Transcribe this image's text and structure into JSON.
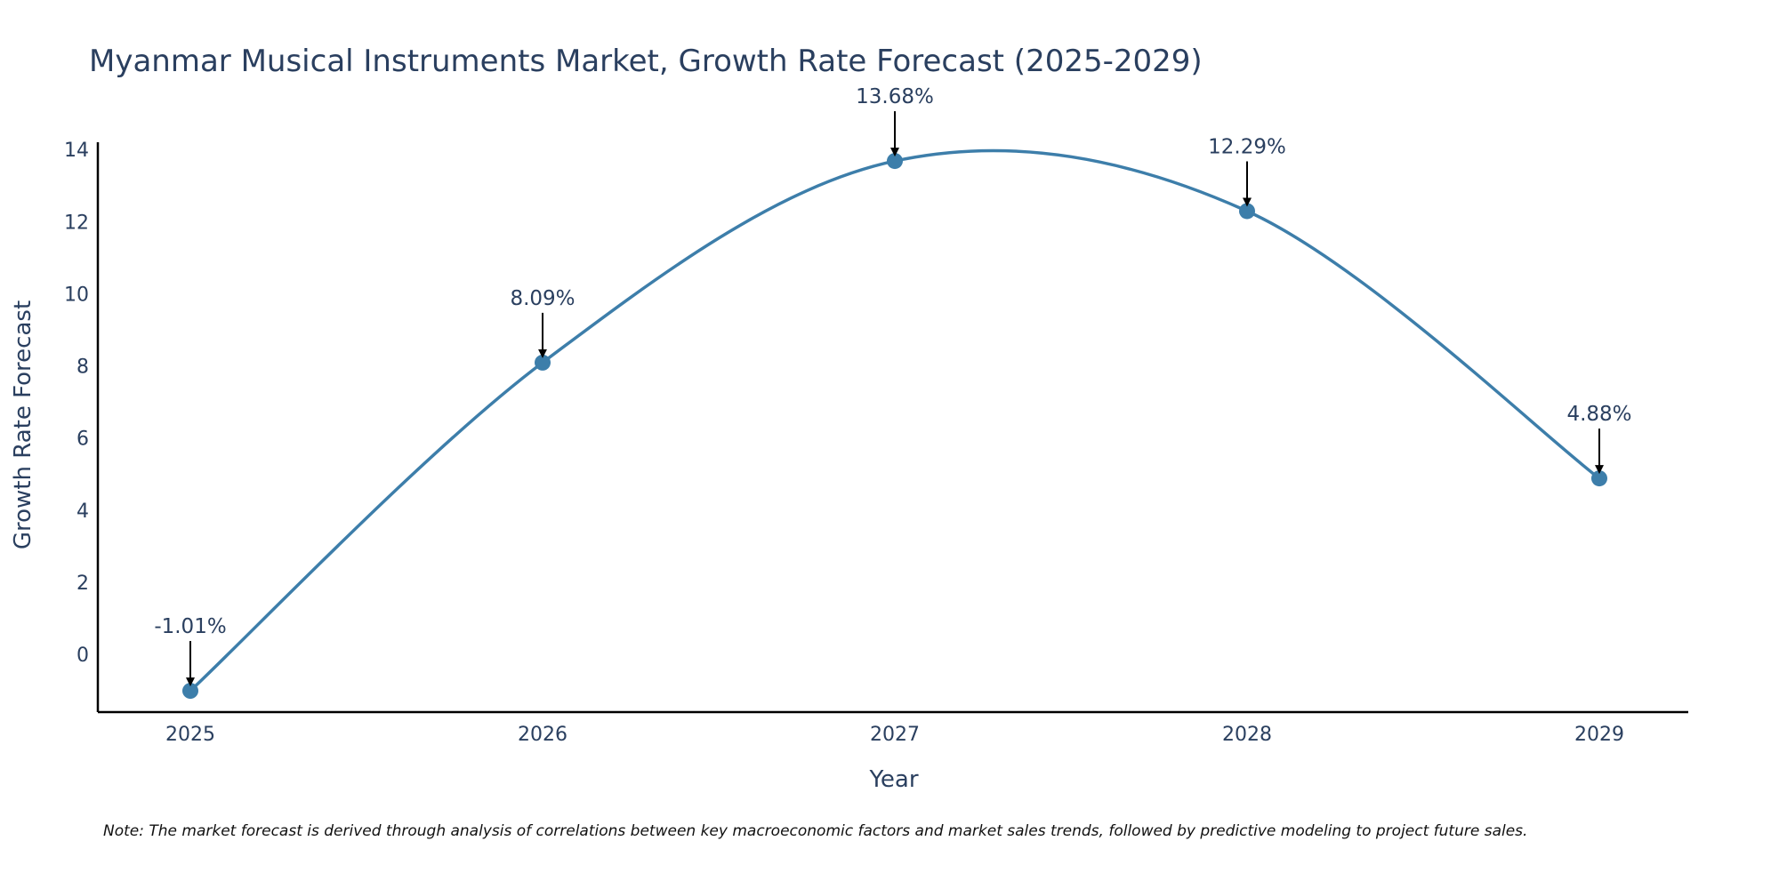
{
  "chart_data": {
    "type": "line",
    "title": "Myanmar Musical Instruments Market, Growth Rate Forecast (2025-2029)",
    "xlabel": "Year",
    "ylabel": "Growth Rate Forecast",
    "categories": [
      "2025",
      "2026",
      "2027",
      "2028",
      "2029"
    ],
    "series": [
      {
        "name": "Growth Rate Forecast",
        "values": [
          -1.01,
          8.09,
          13.68,
          12.29,
          4.88
        ],
        "color": "#3d7eaa"
      }
    ],
    "data_labels": [
      "-1.01%",
      "8.09%",
      "13.68%",
      "12.29%",
      "4.88%"
    ],
    "y_ticks": [
      0,
      2,
      4,
      6,
      8,
      10,
      12,
      14
    ],
    "ylim": [
      -1.6,
      14.2
    ],
    "grid": false,
    "legend": "none",
    "line_shape": "spline",
    "annotation_arrow_color": "#000000",
    "axis_color": "#000000"
  },
  "note": "Note: The market forecast is derived through analysis of correlations between key macroeconomic factors and market sales trends, followed by predictive modeling to project future sales."
}
